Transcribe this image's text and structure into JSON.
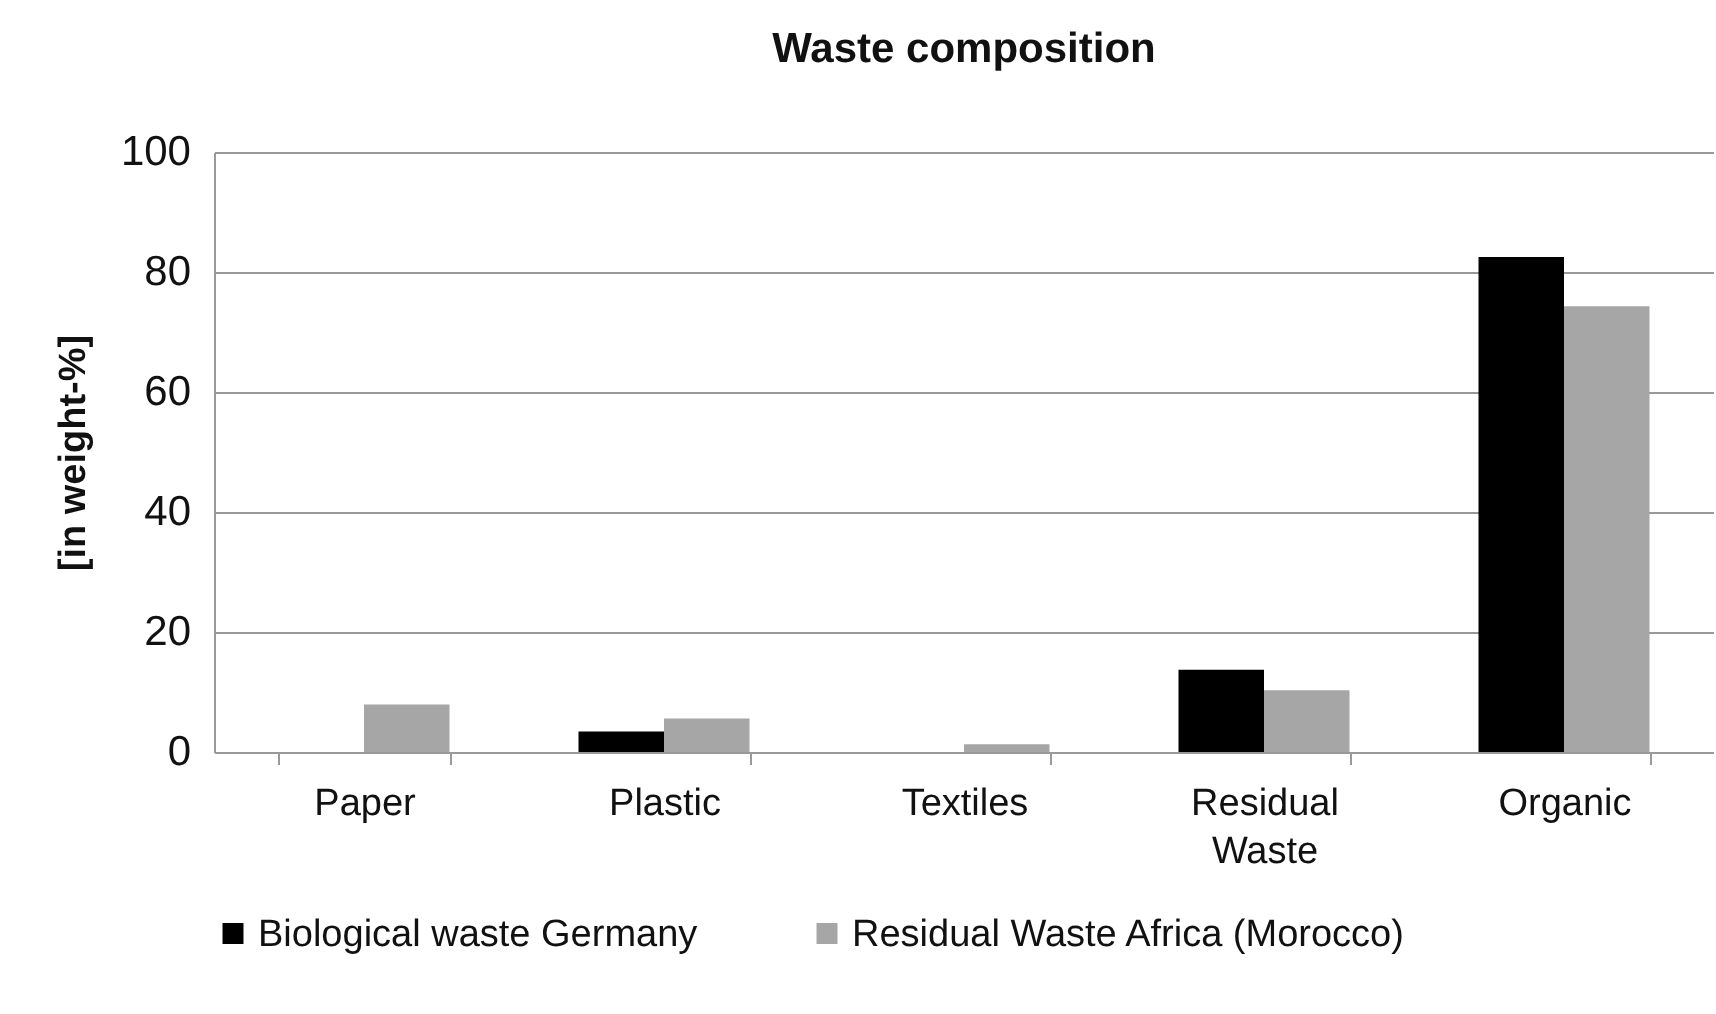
{
  "chart_data": {
    "type": "bar",
    "title": "Waste composition",
    "ylabel": "[in weight-%]",
    "categories": [
      "Paper",
      "Plastic",
      "Textiles",
      "Residual Waste",
      "Organic"
    ],
    "series": [
      {
        "name": "Biological waste Germany",
        "color": "#000000",
        "values": [
          null,
          3.4,
          null,
          13.7,
          82.5
        ]
      },
      {
        "name": "Residual Waste Africa (Morocco)",
        "color": "#a6a6a6",
        "values": [
          7.9,
          5.6,
          1.3,
          10.3,
          74.3
        ]
      }
    ],
    "ylim": [
      0,
      100
    ],
    "yticks": [
      0,
      20,
      40,
      60,
      80,
      100
    ],
    "grid": "y",
    "legend": "bottom"
  }
}
